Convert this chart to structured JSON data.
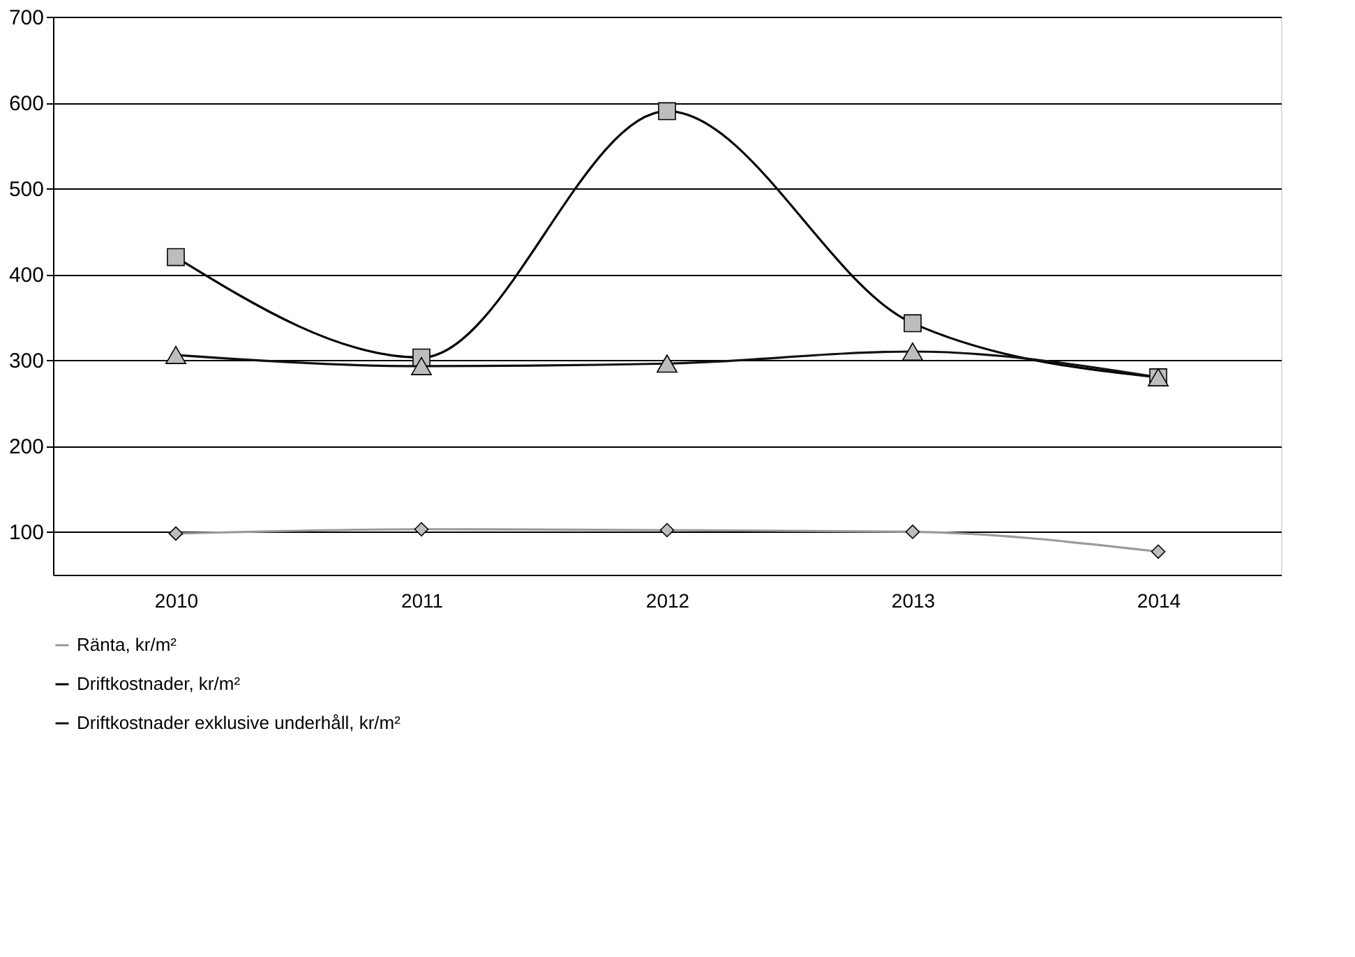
{
  "chart_data": {
    "type": "line",
    "categories": [
      "2010",
      "2011",
      "2012",
      "2013",
      "2014"
    ],
    "series": [
      {
        "name": "Ränta, kr/m²",
        "color": "#9a9a9a",
        "marker": "diamond",
        "values": [
          98,
          103,
          102,
          100,
          77
        ]
      },
      {
        "name": "Driftkostnader, kr/m²",
        "color": "#000000",
        "marker": "square",
        "values": [
          420,
          303,
          590,
          343,
          280
        ]
      },
      {
        "name": "Driftkostnader exklusive underhåll, kr/m²",
        "color": "#111111",
        "marker": "triangle",
        "values": [
          306,
          293,
          296,
          310,
          280
        ]
      }
    ],
    "ylim": [
      50,
      700
    ],
    "yticks": [
      100,
      200,
      300,
      400,
      500,
      600,
      700
    ],
    "grid": "y",
    "legend": "bottom"
  }
}
